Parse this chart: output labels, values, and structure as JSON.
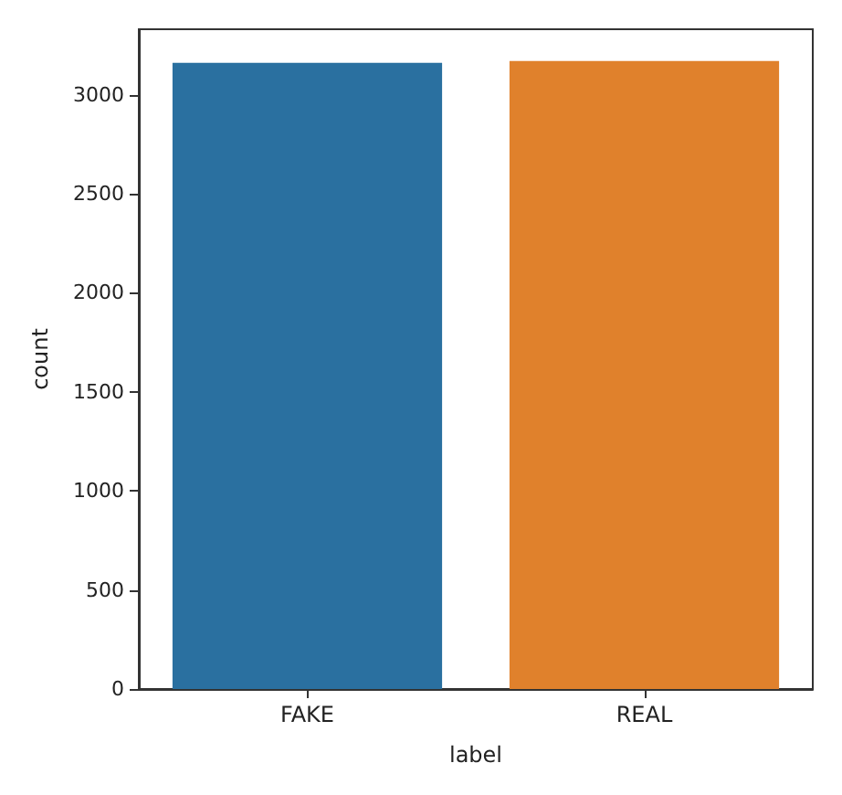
{
  "chart_data": {
    "type": "bar",
    "xlabel": "label",
    "ylabel": "count",
    "categories": [
      "FAKE",
      "REAL"
    ],
    "values": [
      3160,
      3170
    ],
    "colors": [
      "#2a70a0",
      "#e0812c"
    ],
    "ylim": [
      0,
      3330
    ],
    "yticks": [
      0,
      500,
      1000,
      1500,
      2000,
      2500,
      3000
    ],
    "grid": false
  }
}
